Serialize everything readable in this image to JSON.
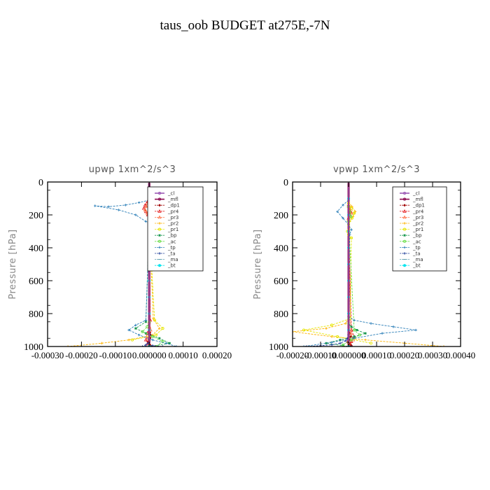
{
  "figure": {
    "title": "taus_oob  BUDGET at275E,-7N"
  },
  "chart_data": [
    {
      "type": "line",
      "title": "upwp   1xm^2/s^3",
      "xlabel": "",
      "ylabel": "Pressure [hPa]",
      "xlim": [
        -0.0003,
        0.0002
      ],
      "ylim": [
        1000,
        0
      ],
      "y_ticks": [
        0,
        200,
        400,
        600,
        800,
        1000
      ],
      "x_ticks": [
        -0.0003,
        -0.0002,
        -0.0001,
        0.0,
        0.0001,
        0.0002
      ],
      "x_tick_labels": [
        "-0.00030",
        "-0.00020",
        "-0.00010",
        "0.000000",
        "0.00010",
        "0.00020"
      ],
      "grid": false,
      "legend_placement": "top-right",
      "series": [
        {
          "name": "_cl",
          "color": "#9b59b6",
          "x": [
            0,
            0,
            0,
            0,
            0,
            0,
            0,
            0,
            0,
            0,
            0,
            0,
            0,
            0,
            0,
            0,
            0,
            0,
            0,
            0,
            0,
            0,
            0,
            0,
            0,
            0,
            0,
            0,
            0,
            0,
            0,
            0,
            0,
            0,
            0,
            0,
            0,
            0,
            0,
            0
          ],
          "y": [
            5,
            30,
            55,
            80,
            105,
            130,
            155,
            180,
            205,
            230,
            255,
            280,
            305,
            330,
            355,
            380,
            405,
            430,
            455,
            480,
            505,
            530,
            555,
            580,
            605,
            630,
            655,
            680,
            705,
            730,
            755,
            780,
            805,
            830,
            855,
            880,
            905,
            930,
            955,
            980
          ]
        },
        {
          "name": "_mfl",
          "color": "#8b0a50",
          "x": [
            0,
            0,
            0,
            0,
            0,
            0,
            0,
            0,
            0,
            0,
            0,
            0,
            0,
            0,
            0,
            0,
            0,
            0,
            0,
            0,
            0,
            0,
            0,
            0,
            0,
            0,
            0,
            0,
            0,
            0,
            0,
            0,
            0,
            0,
            0,
            0,
            0,
            0,
            0,
            0
          ],
          "y": [
            5,
            30,
            55,
            80,
            105,
            130,
            155,
            180,
            205,
            230,
            255,
            280,
            305,
            330,
            355,
            380,
            405,
            430,
            455,
            480,
            505,
            530,
            555,
            580,
            605,
            630,
            655,
            680,
            705,
            730,
            755,
            780,
            805,
            830,
            855,
            880,
            905,
            930,
            955,
            980
          ]
        },
        {
          "name": "_dp1",
          "color": "#a00000",
          "x": [
            0,
            2e-06,
            4e-06,
            2e-06,
            0,
            0,
            -3e-06,
            0,
            4e-06,
            2e-06,
            -3e-06,
            2e-06,
            0
          ],
          "y": [
            900,
            915,
            930,
            945,
            955,
            965,
            975,
            985,
            995,
            990,
            970,
            950,
            930
          ]
        },
        {
          "name": "_pr4",
          "color": "#e41a1c",
          "x": [
            0,
            -5e-06,
            -1.2e-05,
            -1.6e-05,
            -1e-05,
            -4e-06,
            0,
            3e-06,
            0,
            -6e-06,
            -1e-05,
            -5e-06,
            0
          ],
          "y": [
            100,
            120,
            140,
            160,
            180,
            200,
            220,
            840,
            880,
            920,
            960,
            985,
            1000
          ]
        },
        {
          "name": "_pr3",
          "color": "#ff6a3d",
          "x": [
            0,
            -4e-06,
            -8e-06,
            -1.2e-05,
            -6e-06,
            0,
            0,
            4e-06,
            -4e-06,
            0
          ],
          "y": [
            110,
            130,
            150,
            170,
            190,
            210,
            850,
            900,
            950,
            1000
          ]
        },
        {
          "name": "_pr2",
          "color": "#ffb300",
          "x": [
            0,
            1e-05,
            1.8e-05,
            1.2e-05,
            4e-06,
            0,
            1.2e-05,
            3e-05,
            1e-05,
            -6e-05,
            -0.00014,
            -0.00024
          ],
          "y": [
            110,
            140,
            170,
            200,
            230,
            260,
            830,
            890,
            930,
            960,
            980,
            1000
          ]
        },
        {
          "name": "_pr1",
          "color": "#e6e600",
          "x": [
            0,
            1.4e-05,
            3.4e-05,
            2.4e-05,
            6e-06,
            0,
            1.6e-05,
            4e-05,
            2e-05,
            -5e-05
          ],
          "y": [
            120,
            150,
            175,
            200,
            230,
            250,
            840,
            890,
            930,
            960
          ]
        },
        {
          "name": "_bp",
          "color": "#1a9850",
          "x": [
            0,
            1.8e-05,
            3.6e-05,
            2e-05,
            4e-06,
            0,
            -1e-05,
            -4e-05,
            -1e-05,
            3e-05,
            6e-05,
            4e-06
          ],
          "y": [
            120,
            140,
            160,
            180,
            210,
            240,
            850,
            890,
            920,
            950,
            980,
            1000
          ]
        },
        {
          "name": "_ac",
          "color": "#66dd44",
          "x": [
            0,
            1.2e-05,
            2.8e-05,
            1.6e-05,
            0,
            0,
            -6e-06,
            -2e-05,
            1e-05,
            4e-05,
            2e-05
          ],
          "y": [
            120,
            140,
            160,
            180,
            210,
            850,
            880,
            910,
            940,
            970,
            1000
          ]
        },
        {
          "name": "_tp",
          "color": "#2c7fb8",
          "x": [
            0,
            -3e-05,
            -7e-05,
            -0.00012,
            -0.00016,
            -9e-05,
            -4e-05,
            -1e-05,
            1e-05,
            0,
            -1e-05,
            -4e-05,
            -6e-05,
            -3e-05,
            1e-05,
            5e-05,
            8e-05
          ],
          "y": [
            110,
            125,
            140,
            150,
            145,
            170,
            200,
            240,
            265,
            280,
            840,
            870,
            900,
            930,
            960,
            980,
            1000
          ]
        },
        {
          "name": "_ta",
          "color": "#1f3d99",
          "x": [
            0,
            2e-06,
            0,
            -4e-06,
            -1e-05,
            -2e-05,
            1e-05,
            4e-05
          ],
          "y": [
            900,
            930,
            960,
            980,
            990,
            1000,
            995,
            1000
          ]
        },
        {
          "name": "_ma",
          "color": "#5599aa",
          "x": [
            0,
            0,
            0,
            0,
            0,
            0,
            0,
            0,
            0,
            0
          ],
          "y": [
            100,
            200,
            300,
            400,
            500,
            600,
            700,
            800,
            900,
            1000
          ]
        },
        {
          "name": "_bt",
          "color": "#00e5ee",
          "x": [
            0,
            0,
            0,
            0,
            0,
            0,
            0,
            0,
            0,
            0
          ],
          "y": [
            100,
            200,
            300,
            400,
            500,
            600,
            700,
            800,
            900,
            1000
          ]
        }
      ]
    },
    {
      "type": "line",
      "title": "vpwp   1xm^2/s^3",
      "xlabel": "",
      "ylabel": "Pressure [hPa]",
      "xlim": [
        -0.0002,
        0.0004
      ],
      "ylim": [
        1000,
        0
      ],
      "y_ticks": [
        0,
        200,
        400,
        600,
        800,
        1000
      ],
      "x_ticks": [
        -0.0002,
        -0.0001,
        0.0,
        0.0001,
        0.0002,
        0.0003,
        0.0004
      ],
      "x_tick_labels": [
        "-0.00020",
        "-0.00010",
        "0.000000",
        "0.00010",
        "0.00020",
        "0.00030",
        "0.00040"
      ],
      "grid": false,
      "legend_placement": "top-right",
      "series": [
        {
          "name": "_cl",
          "color": "#9b59b6",
          "x": [
            0,
            0,
            0,
            0,
            0,
            0,
            0,
            0,
            0,
            0,
            0,
            0,
            0,
            0,
            0,
            0,
            0,
            0,
            0,
            0,
            0,
            0,
            0,
            0,
            0,
            0,
            0,
            0,
            0,
            0,
            0,
            0,
            0,
            0,
            0,
            0,
            0,
            0,
            0,
            0
          ],
          "y": [
            5,
            30,
            55,
            80,
            105,
            130,
            155,
            180,
            205,
            230,
            255,
            280,
            305,
            330,
            355,
            380,
            405,
            430,
            455,
            480,
            505,
            530,
            555,
            580,
            605,
            630,
            655,
            680,
            705,
            730,
            755,
            780,
            805,
            830,
            855,
            880,
            905,
            930,
            955,
            980
          ]
        },
        {
          "name": "_mfl",
          "color": "#8b0a50",
          "x": [
            0,
            0,
            0,
            0,
            0,
            0,
            0,
            0,
            0,
            0,
            0,
            0,
            0,
            0,
            0,
            0,
            0,
            0,
            0,
            0,
            0,
            0,
            0,
            0,
            0,
            0,
            0,
            0,
            0,
            0,
            0,
            0,
            0,
            0,
            0,
            0,
            0,
            0,
            0,
            0
          ],
          "y": [
            5,
            30,
            55,
            80,
            105,
            130,
            155,
            180,
            205,
            230,
            255,
            280,
            305,
            330,
            355,
            380,
            405,
            430,
            455,
            480,
            505,
            530,
            555,
            580,
            605,
            630,
            655,
            680,
            705,
            730,
            755,
            780,
            805,
            830,
            855,
            880,
            905,
            930,
            955,
            980
          ]
        },
        {
          "name": "_dp1",
          "color": "#a00000",
          "x": [
            0,
            4e-06,
            8e-06,
            4e-06,
            0,
            -4e-06,
            6e-06,
            1e-05,
            4e-06,
            0
          ],
          "y": [
            900,
            920,
            940,
            955,
            965,
            975,
            985,
            995,
            1000,
            990
          ]
        },
        {
          "name": "_pr4",
          "color": "#e41a1c",
          "x": [
            0,
            4e-06,
            8e-06,
            4e-06,
            0,
            1e-05,
            2e-05,
            1e-05,
            0
          ],
          "y": [
            140,
            160,
            180,
            200,
            220,
            900,
            940,
            970,
            1000
          ]
        },
        {
          "name": "_pr3",
          "color": "#ff6a3d",
          "x": [
            0,
            4e-06,
            1e-05,
            4e-06,
            0,
            8e-06,
            1.6e-05,
            0
          ],
          "y": [
            150,
            170,
            190,
            210,
            230,
            920,
            960,
            1000
          ]
        },
        {
          "name": "_pr2",
          "color": "#ffb300",
          "x": [
            0,
            1.2e-05,
            2.4e-05,
            1.6e-05,
            4e-06,
            0,
            -1e-05,
            -8e-05,
            -0.0002,
            -6e-05,
            6e-05,
            0.0002,
            0.00034
          ],
          "y": [
            120,
            150,
            180,
            210,
            240,
            820,
            860,
            890,
            910,
            940,
            960,
            980,
            1000
          ]
        },
        {
          "name": "_pr1",
          "color": "#e6e600",
          "x": [
            0,
            1e-05,
            2e-05,
            1.2e-05,
            0,
            -4e-06,
            0,
            1e-05,
            6e-06,
            -6e-05,
            -0.00016,
            -4e-05,
            8e-05
          ],
          "y": [
            130,
            160,
            190,
            220,
            260,
            300,
            320,
            340,
            830,
            870,
            900,
            940,
            980
          ]
        },
        {
          "name": "_bp",
          "color": "#1a9850",
          "x": [
            0,
            0,
            1e-05,
            3e-05,
            6e-05,
            2e-05,
            -3e-05,
            -8e-05,
            -2e-05,
            0
          ],
          "y": [
            830,
            860,
            880,
            900,
            920,
            940,
            960,
            980,
            995,
            1000
          ]
        },
        {
          "name": "_ac",
          "color": "#66dd44",
          "x": [
            0,
            4e-06,
            8e-06,
            0,
            2e-05,
            4e-05,
            1e-05,
            -2e-05
          ],
          "y": [
            150,
            180,
            210,
            240,
            900,
            930,
            960,
            990
          ]
        },
        {
          "name": "_tp",
          "color": "#2c7fb8",
          "x": [
            0,
            -2e-05,
            -4e-05,
            -2e-05,
            0,
            1e-05,
            4e-06,
            0,
            2e-05,
            8e-05,
            0.00016,
            0.00024,
            0.00012,
            2e-05,
            -6e-05,
            -0.00016
          ],
          "y": [
            110,
            140,
            180,
            220,
            260,
            290,
            320,
            820,
            840,
            860,
            880,
            900,
            920,
            950,
            975,
            1000
          ]
        },
        {
          "name": "_ta",
          "color": "#1f3d99",
          "x": [
            0,
            -4e-06,
            -1e-05,
            -3e-05,
            -6e-05,
            -0.0001,
            -0.00015,
            1e-05
          ],
          "y": [
            930,
            950,
            965,
            980,
            990,
            995,
            1000,
            1000
          ]
        },
        {
          "name": "_ma",
          "color": "#5599aa",
          "x": [
            0,
            0,
            0,
            0,
            0,
            0,
            0,
            0,
            0,
            0
          ],
          "y": [
            100,
            200,
            300,
            400,
            500,
            600,
            700,
            800,
            900,
            1000
          ]
        },
        {
          "name": "_bt",
          "color": "#00e5ee",
          "x": [
            0,
            0,
            0,
            0,
            0,
            0,
            0,
            0,
            0,
            0
          ],
          "y": [
            100,
            200,
            300,
            400,
            500,
            600,
            700,
            800,
            900,
            1000
          ]
        }
      ]
    }
  ]
}
